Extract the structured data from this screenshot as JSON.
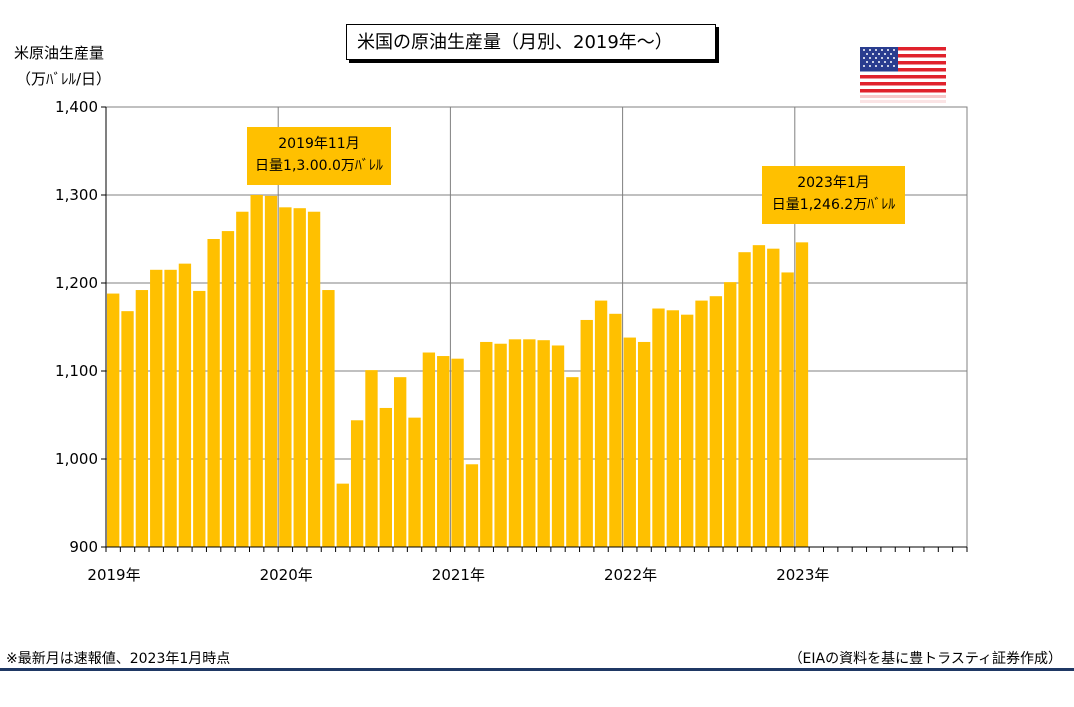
{
  "chart_data": {
    "type": "bar",
    "title": "米国の原油生産量（月別、2019年～）",
    "ylabel_line1": "米原油生産量",
    "ylabel_line2": "（万ﾊﾞﾚﾙ/日）",
    "ylim": [
      900,
      1400
    ],
    "yticks": [
      "900",
      "1,000",
      "1,100",
      "1,200",
      "1,300",
      "1,400"
    ],
    "ytick_values": [
      900,
      1000,
      1100,
      1200,
      1300,
      1400
    ],
    "xticks": [
      "2019年",
      "2020年",
      "2021年",
      "2022年",
      "2023年"
    ],
    "months_total": 60,
    "start": "2019-01",
    "values": [
      1188,
      1168,
      1192,
      1215,
      1215,
      1222,
      1191,
      1250,
      1259,
      1281,
      1300,
      1299,
      1286,
      1285,
      1281,
      1192,
      972,
      1044,
      1101,
      1058,
      1093,
      1047,
      1121,
      1117,
      1114,
      994,
      1133,
      1131,
      1136,
      1136,
      1135,
      1129,
      1093,
      1158,
      1180,
      1165,
      1138,
      1133,
      1171,
      1169,
      1164,
      1180,
      1185,
      1201,
      1235,
      1243,
      1239,
      1212,
      1246.2
    ],
    "bar_color": "#ffc000",
    "grid": true,
    "annotations": [
      {
        "line1": "2019年11月",
        "line2": "日量1,3.00.0万ﾊﾞﾚﾙ"
      },
      {
        "line1": "2023年1月",
        "line2": "日量1,246.2万ﾊﾞﾚﾙ"
      }
    ]
  },
  "footer": {
    "note_left": "※最新月は速報値、2023年1月時点",
    "note_right": "（EIAの資料を基に豊トラスティ証券作成）"
  },
  "flag_icon": "us-flag-icon"
}
